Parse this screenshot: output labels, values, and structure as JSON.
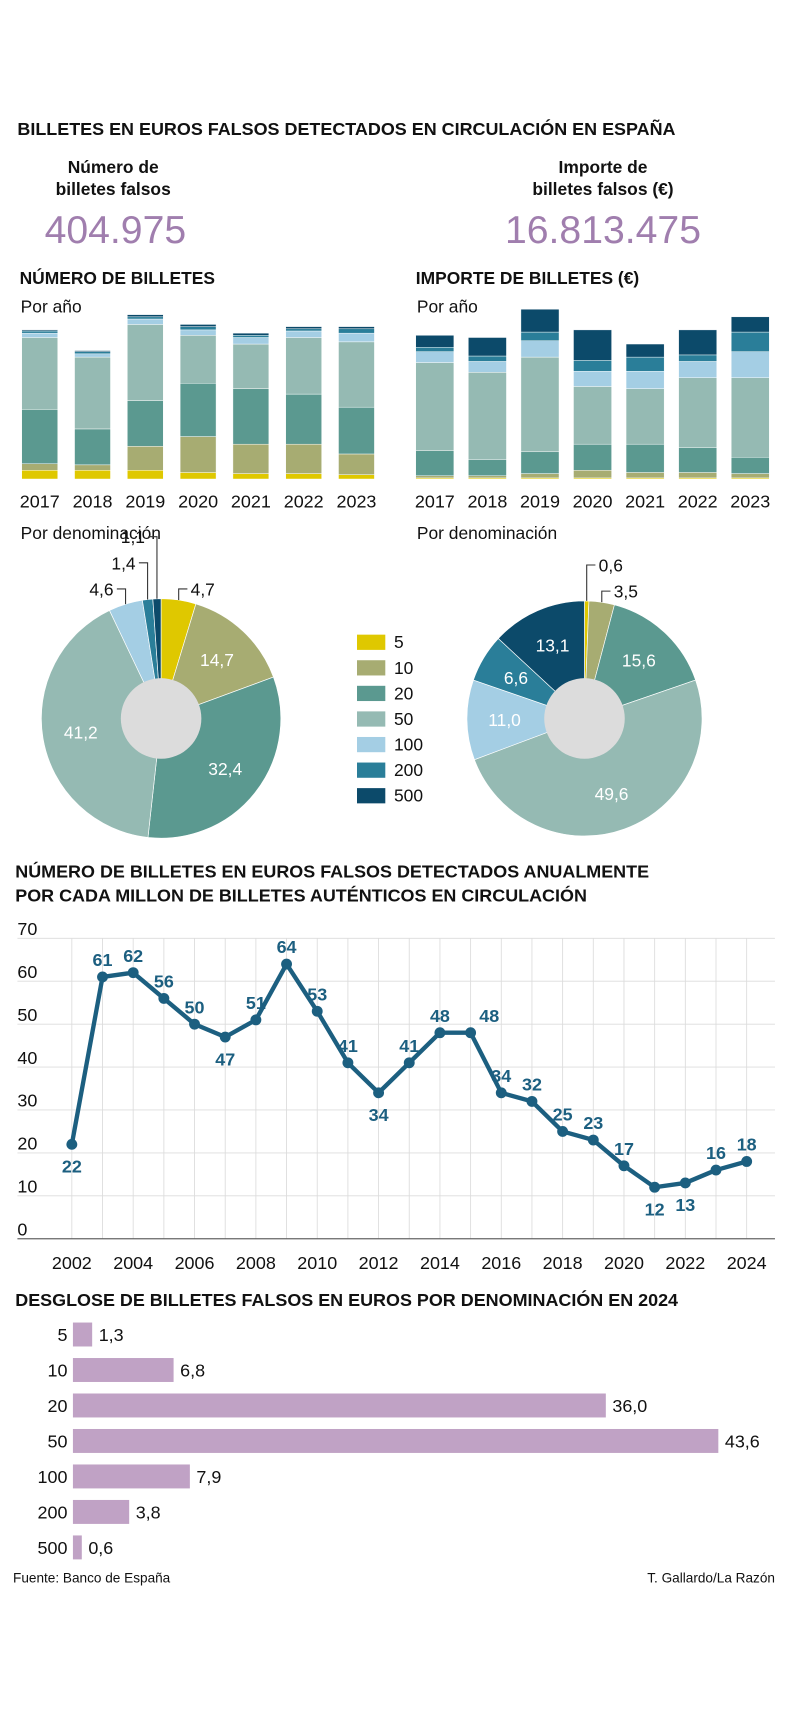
{
  "header": {
    "title": "BILLETES EN EUROS FALSOS DETECTADOS EN CIRCULACIÓN EN ESPAÑA",
    "stats": [
      {
        "label": [
          "Número de",
          "billetes falsos"
        ],
        "value": "404.975"
      },
      {
        "label": [
          "Importe de",
          "billetes falsos (€)"
        ],
        "value": "16.813.475"
      }
    ]
  },
  "legend": {
    "names": [
      "5",
      "10",
      "20",
      "50",
      "100",
      "200",
      "500"
    ],
    "colors": [
      "#dfc800",
      "#a7ac72",
      "#5b9990",
      "#95bab3",
      "#a4cee4",
      "#2a7e99",
      "#0c4a6a"
    ]
  },
  "chart_data": [
    {
      "type": "stacked-bar",
      "title": "NÚMERO DE BILLETES",
      "subtitle": "Por año",
      "categories": [
        "2017",
        "2018",
        "2019",
        "2020",
        "2021",
        "2022",
        "2023"
      ],
      "series": [
        {
          "values": [
            8,
            8,
            8,
            6,
            5,
            5,
            4
          ]
        },
        {
          "values": [
            6,
            5,
            22,
            33,
            27,
            27,
            19
          ]
        },
        {
          "values": [
            50,
            33,
            42,
            49,
            51,
            46,
            43
          ]
        },
        {
          "values": [
            66,
            66,
            70,
            44,
            41,
            52,
            60
          ]
        },
        {
          "values": [
            4,
            3,
            5,
            5,
            6,
            6,
            8
          ]
        },
        {
          "values": [
            2,
            2,
            2,
            3,
            2,
            2,
            4
          ]
        },
        {
          "values": [
            1,
            1,
            2,
            2,
            2,
            2,
            2
          ]
        }
      ]
    },
    {
      "type": "pie",
      "subtitle": "Por denominación",
      "values": [
        4.7,
        14.7,
        32.4,
        41.2,
        4.6,
        1.4,
        1.1
      ],
      "value_labels": [
        "4,7",
        "14,7",
        "32,4",
        "41,2",
        "4,6",
        "1,4",
        "1,1"
      ]
    },
    {
      "type": "stacked-bar",
      "title": "IMPORTE DE BILLETES (€)",
      "subtitle": "Por año",
      "categories": [
        "2017",
        "2018",
        "2019",
        "2020",
        "2021",
        "2022",
        "2023"
      ],
      "series": [
        {
          "values": [
            1,
            1,
            1,
            1,
            1,
            1,
            1
          ]
        },
        {
          "values": [
            2,
            2,
            4,
            7,
            5,
            5,
            4
          ]
        },
        {
          "values": [
            23,
            15,
            20,
            24,
            26,
            23,
            15
          ]
        },
        {
          "values": [
            81,
            80,
            87,
            53,
            51,
            64,
            73
          ]
        },
        {
          "values": [
            10,
            10,
            15,
            14,
            16,
            15,
            24
          ]
        },
        {
          "values": [
            4,
            5,
            8,
            10,
            13,
            6,
            18
          ]
        },
        {
          "values": [
            11,
            17,
            21,
            28,
            12,
            23,
            14
          ]
        }
      ]
    },
    {
      "type": "pie",
      "subtitle": "Por denominación",
      "values": [
        0.6,
        3.5,
        15.6,
        49.6,
        11.0,
        6.6,
        13.1
      ],
      "value_labels": [
        "0,6",
        "3,5",
        "15,6",
        "49,6",
        "11,0",
        "6,6",
        "13,1"
      ]
    },
    {
      "type": "line",
      "title": [
        "NÚMERO DE BILLETES EN EUROS FALSOS DETECTADOS ANUALMENTE",
        "POR CADA MILLON DE BILLETES AUTÉNTICOS EN CIRCULACIÓN"
      ],
      "x": [
        2002,
        2003,
        2004,
        2005,
        2006,
        2007,
        2008,
        2009,
        2010,
        2011,
        2012,
        2013,
        2014,
        2015,
        2016,
        2017,
        2018,
        2019,
        2020,
        2021,
        2022,
        2023,
        2024
      ],
      "values": [
        22,
        61,
        62,
        56,
        50,
        47,
        51,
        64,
        53,
        41,
        34,
        41,
        48,
        48,
        34,
        32,
        25,
        23,
        17,
        12,
        13,
        16,
        18
      ],
      "color": "#1c5f80",
      "xlim": [
        2002,
        2024
      ],
      "xticks": [
        2002,
        2004,
        2006,
        2008,
        2010,
        2012,
        2014,
        2016,
        2018,
        2020,
        2022,
        2024
      ],
      "ylim": [
        0,
        70
      ],
      "yticks": [
        0,
        10,
        20,
        30,
        40,
        50,
        60,
        70
      ],
      "grid": true
    },
    {
      "type": "hbar",
      "title": "DESGLOSE DE BILLETES FALSOS EN EUROS POR  DENOMINACIÓN EN 2024",
      "categories": [
        "5",
        "10",
        "20",
        "50",
        "100",
        "200",
        "500"
      ],
      "values": [
        1.3,
        6.8,
        36.0,
        43.6,
        7.9,
        3.8,
        0.6
      ],
      "value_labels": [
        "1,3",
        "6,8",
        "36,0",
        "43,6",
        "7,9",
        "3,8",
        "0,6"
      ],
      "color": "#c0a2c5"
    }
  ],
  "footer": {
    "source": "Fuente: Banco de España",
    "credit": "T. Gallardo/La Razón"
  }
}
